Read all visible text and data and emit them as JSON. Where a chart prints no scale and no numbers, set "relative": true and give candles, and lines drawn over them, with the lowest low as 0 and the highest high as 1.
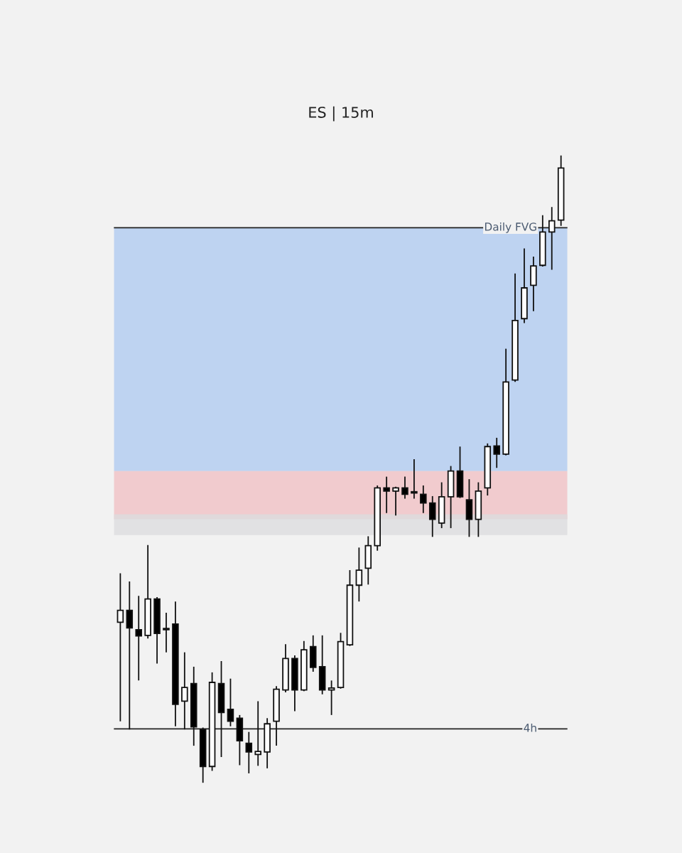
{
  "chart_data": {
    "type": "candlestick",
    "subtitle": "ES | 15m",
    "relative": true,
    "categories": [
      null,
      null,
      null,
      null,
      null,
      null,
      null,
      null,
      null,
      null,
      null,
      null,
      null,
      null,
      null,
      null,
      null,
      null,
      null,
      null,
      null,
      null,
      null,
      null,
      null,
      null,
      null,
      null,
      null,
      null,
      null,
      null,
      null,
      null,
      null,
      null,
      null,
      null,
      null,
      null,
      null,
      null,
      null,
      null,
      null,
      null,
      null,
      null,
      null
    ],
    "ohlc": [
      [
        0.256,
        0.334,
        0.098,
        0.275
      ],
      [
        0.275,
        0.321,
        0.085,
        0.247
      ],
      [
        0.244,
        0.298,
        0.163,
        0.234
      ],
      [
        0.235,
        0.379,
        0.23,
        0.293
      ],
      [
        0.293,
        0.296,
        0.19,
        0.238
      ],
      [
        0.244,
        0.271,
        0.208,
        0.245
      ],
      [
        0.253,
        0.289,
        0.09,
        0.125
      ],
      [
        0.13,
        0.208,
        0.085,
        0.152
      ],
      [
        0.158,
        0.185,
        0.059,
        0.089
      ],
      [
        0.085,
        0.088,
        0.0,
        0.026
      ],
      [
        0.026,
        0.176,
        0.019,
        0.16
      ],
      [
        0.158,
        0.194,
        0.041,
        0.112
      ],
      [
        0.117,
        0.166,
        0.09,
        0.098
      ],
      [
        0.103,
        0.108,
        0.028,
        0.067
      ],
      [
        0.063,
        0.081,
        0.015,
        0.049
      ],
      [
        0.045,
        0.13,
        0.027,
        0.05
      ],
      [
        0.049,
        0.103,
        0.023,
        0.094
      ],
      [
        0.098,
        0.154,
        0.059,
        0.149
      ],
      [
        0.148,
        0.221,
        0.144,
        0.198
      ],
      [
        0.198,
        0.203,
        0.114,
        0.148
      ],
      [
        0.148,
        0.226,
        0.146,
        0.212
      ],
      [
        0.217,
        0.235,
        0.177,
        0.184
      ],
      [
        0.185,
        0.235,
        0.141,
        0.148
      ],
      [
        0.148,
        0.163,
        0.108,
        0.151
      ],
      [
        0.152,
        0.239,
        0.15,
        0.225
      ],
      [
        0.22,
        0.339,
        0.218,
        0.315
      ],
      [
        0.315,
        0.375,
        0.289,
        0.339
      ],
      [
        0.342,
        0.393,
        0.316,
        0.378
      ],
      [
        0.378,
        0.474,
        0.37,
        0.47
      ],
      [
        0.47,
        0.488,
        0.43,
        0.465
      ],
      [
        0.465,
        0.472,
        0.426,
        0.47
      ],
      [
        0.47,
        0.488,
        0.453,
        0.46
      ],
      [
        0.462,
        0.516,
        0.453,
        0.462
      ],
      [
        0.46,
        0.474,
        0.43,
        0.446
      ],
      [
        0.446,
        0.457,
        0.392,
        0.42
      ],
      [
        0.414,
        0.479,
        0.406,
        0.456
      ],
      [
        0.456,
        0.505,
        0.406,
        0.497
      ],
      [
        0.497,
        0.536,
        0.454,
        0.456
      ],
      [
        0.451,
        0.484,
        0.392,
        0.42
      ],
      [
        0.42,
        0.479,
        0.392,
        0.465
      ],
      [
        0.47,
        0.541,
        0.458,
        0.536
      ],
      [
        0.537,
        0.55,
        0.502,
        0.524
      ],
      [
        0.524,
        0.692,
        0.522,
        0.639
      ],
      [
        0.642,
        0.812,
        0.639,
        0.737
      ],
      [
        0.74,
        0.852,
        0.733,
        0.789
      ],
      [
        0.793,
        0.839,
        0.752,
        0.824
      ],
      [
        0.825,
        0.905,
        0.823,
        0.878
      ],
      [
        0.878,
        0.918,
        0.818,
        0.896
      ],
      [
        0.897,
        1.0,
        0.888,
        0.98
      ]
    ],
    "ref_lines": [
      {
        "axis": "y",
        "value": 0.885,
        "label": "Daily FVG",
        "color": "#222222"
      },
      {
        "axis": "y",
        "value": 0.086,
        "label": "4h",
        "color": "#222222"
      }
    ],
    "bands": [
      {
        "axis": "y",
        "from": 0.497,
        "to": 0.885,
        "color": "#b0cbf0"
      },
      {
        "axis": "y",
        "from": 0.42,
        "to": 0.497,
        "color": "#f0c0c4"
      },
      {
        "axis": "y",
        "from": 0.395,
        "to": 0.428,
        "color": "#dcdcde"
      }
    ]
  }
}
